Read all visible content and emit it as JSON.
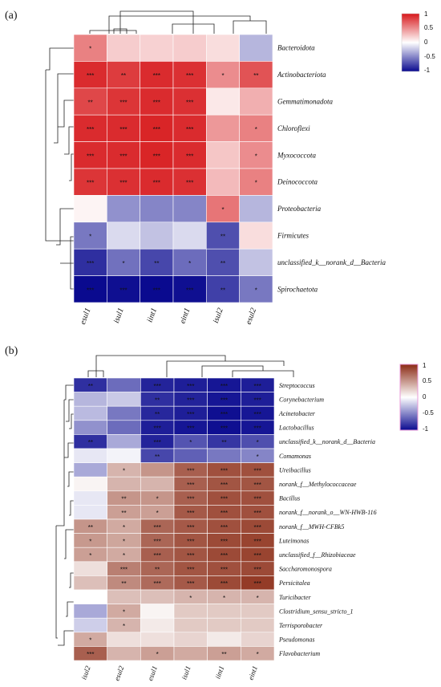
{
  "chart_data": [
    {
      "type": "heatmap",
      "panel_label": "(a)",
      "rows": [
        "Bacteroidota",
        "Actinobacteriota",
        "Gemmatimonadota",
        "Chloroflexi",
        "Myxococcota",
        "Deinococcota",
        "Proteobacteria",
        "Firmicutes",
        "unclassified_k__norank_d__Bacteria",
        "Spirochaetota"
      ],
      "columns": [
        "esul1",
        "isul1",
        "iint1",
        "eint1",
        "isul2",
        "esul2"
      ],
      "values": [
        [
          0.55,
          0.22,
          0.2,
          0.22,
          0.15,
          -0.3
        ],
        [
          0.92,
          0.85,
          0.92,
          0.9,
          0.5,
          0.75
        ],
        [
          0.8,
          0.88,
          0.92,
          0.9,
          0.1,
          0.35
        ],
        [
          0.92,
          0.92,
          0.95,
          0.92,
          0.45,
          0.55
        ],
        [
          0.92,
          0.92,
          0.95,
          0.92,
          0.25,
          0.5
        ],
        [
          0.88,
          0.9,
          0.92,
          0.9,
          0.3,
          0.55
        ],
        [
          0.05,
          -0.45,
          -0.5,
          -0.5,
          0.6,
          -0.3
        ],
        [
          -0.55,
          -0.15,
          -0.25,
          -0.15,
          -0.72,
          0.15
        ],
        [
          -0.85,
          -0.58,
          -0.75,
          -0.6,
          -0.72,
          -0.25
        ],
        [
          -1.0,
          -0.98,
          -1.0,
          -0.98,
          -0.78,
          -0.55
        ]
      ],
      "significance": [
        [
          "*",
          "",
          "",
          "",
          "",
          ""
        ],
        [
          "***",
          "**",
          "***",
          "***",
          "*",
          "**"
        ],
        [
          "**",
          "***",
          "***",
          "***",
          "",
          ""
        ],
        [
          "***",
          "***",
          "***",
          "***",
          "",
          "*"
        ],
        [
          "***",
          "***",
          "***",
          "***",
          "",
          "*"
        ],
        [
          "***",
          "***",
          "***",
          "***",
          "",
          "*"
        ],
        [
          "",
          "",
          "",
          "",
          "*",
          ""
        ],
        [
          "*",
          "",
          "",
          "",
          "**",
          ""
        ],
        [
          "***",
          "*",
          "**",
          "*",
          "**",
          ""
        ],
        [
          "***",
          "***",
          "***",
          "***",
          "**",
          "*"
        ]
      ],
      "colorbar": {
        "ticks": [
          "1",
          "0.5",
          "0",
          "-0.5",
          "-1"
        ],
        "low": "#0a0a8f",
        "mid": "#ffffff",
        "high": "#d7191c"
      }
    },
    {
      "type": "heatmap",
      "panel_label": "(b)",
      "rows": [
        "Streptococcus",
        "Corynebacterium",
        "Acinetobacter",
        "Lactobacillus",
        "unclassified_k__norank_d__Bacteria",
        "Comamonas",
        "Ureibacillus",
        "norank_f__Methylococcaceae",
        "Bacillus",
        "norank_f__norank_o__WN-HWB-116",
        "norank_f__MWH-CFBk5",
        "Luteimonas",
        "unclassified_f__Rhizobiaceae",
        "Saccharomonospora",
        "Persicitalea",
        "Turicibacter",
        "Clostridium_sensu_stricto_1",
        "Terrisporobacter",
        "Pseudomonas",
        "Flavobacterium"
      ],
      "columns": [
        "isul2",
        "esul2",
        "esul1",
        "isul1",
        "iint1",
        "eint1"
      ],
      "values": [
        [
          -0.85,
          -0.6,
          -0.9,
          -0.92,
          -0.95,
          -0.92
        ],
        [
          -0.3,
          -0.22,
          -0.85,
          -0.9,
          -0.95,
          -0.92
        ],
        [
          -0.28,
          -0.55,
          -0.88,
          -0.92,
          -0.98,
          -0.95
        ],
        [
          -0.45,
          -0.6,
          -0.92,
          -0.95,
          -0.98,
          -0.95
        ],
        [
          -0.85,
          -0.35,
          -0.9,
          -0.7,
          -0.82,
          -0.72
        ],
        [
          -0.1,
          -0.05,
          -0.75,
          -0.65,
          -0.55,
          -0.5
        ],
        [
          -0.35,
          0.35,
          0.5,
          0.75,
          0.82,
          0.82
        ],
        [
          0.05,
          0.35,
          0.35,
          0.75,
          0.8,
          0.8
        ],
        [
          -0.1,
          0.5,
          0.5,
          0.75,
          0.82,
          0.82
        ],
        [
          -0.1,
          0.45,
          0.45,
          0.78,
          0.82,
          0.82
        ],
        [
          0.5,
          0.4,
          0.72,
          0.78,
          0.82,
          0.85
        ],
        [
          0.48,
          0.42,
          0.72,
          0.8,
          0.85,
          0.88
        ],
        [
          0.45,
          0.4,
          0.75,
          0.8,
          0.85,
          0.88
        ],
        [
          0.15,
          0.6,
          0.72,
          0.8,
          0.82,
          0.85
        ],
        [
          0.3,
          0.55,
          0.7,
          0.78,
          0.85,
          0.92
        ],
        [
          0.0,
          0.3,
          0.3,
          0.35,
          0.35,
          0.35
        ],
        [
          -0.35,
          0.4,
          0.05,
          0.25,
          0.25,
          0.25
        ],
        [
          -0.2,
          0.35,
          0.1,
          0.25,
          0.25,
          0.25
        ],
        [
          0.4,
          0.15,
          0.15,
          0.2,
          0.1,
          0.2
        ],
        [
          0.75,
          0.35,
          0.45,
          0.4,
          0.45,
          0.4
        ]
      ],
      "significance": [
        [
          "**",
          "",
          "***",
          "***",
          "***",
          "***"
        ],
        [
          "",
          "",
          "**",
          "***",
          "***",
          "***"
        ],
        [
          "",
          "",
          "**",
          "***",
          "***",
          "***"
        ],
        [
          "",
          "",
          "***",
          "***",
          "***",
          "***"
        ],
        [
          "**",
          "",
          "***",
          "*",
          "**",
          "*"
        ],
        [
          "",
          "",
          "**",
          "",
          "",
          "*"
        ],
        [
          "",
          "*",
          "",
          "***",
          "***",
          "***"
        ],
        [
          "",
          "",
          "",
          "***",
          "***",
          "***"
        ],
        [
          "",
          "**",
          "*",
          "***",
          "***",
          "***"
        ],
        [
          "",
          "**",
          "*",
          "***",
          "***",
          "***"
        ],
        [
          "**",
          "*",
          "***",
          "***",
          "***",
          "***"
        ],
        [
          "*",
          "*",
          "***",
          "***",
          "***",
          "***"
        ],
        [
          "*",
          "*",
          "***",
          "***",
          "***",
          "***"
        ],
        [
          "",
          "***",
          "**",
          "***",
          "***",
          "***"
        ],
        [
          "",
          "**",
          "***",
          "***",
          "***",
          "***"
        ],
        [
          "",
          "",
          "",
          "*",
          "*",
          "*"
        ],
        [
          "",
          "*",
          "",
          "",
          "",
          ""
        ],
        [
          "",
          "*",
          "",
          "",
          "",
          ""
        ],
        [
          "*",
          "",
          "",
          "",
          "",
          ""
        ],
        [
          "***",
          "",
          "*",
          "",
          "**",
          "*"
        ]
      ],
      "colorbar": {
        "ticks": [
          "1",
          "0.5",
          "0",
          "-0.5",
          "-1"
        ],
        "low": "#0a0a8f",
        "mid": "#ffffff",
        "high": "#8b2a14"
      }
    }
  ]
}
